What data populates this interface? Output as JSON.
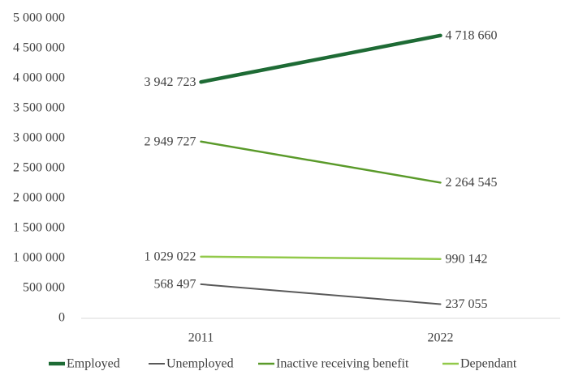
{
  "chart_data": {
    "type": "line",
    "categories": [
      "2011",
      "2022"
    ],
    "series": [
      {
        "name": "Employed",
        "color": "#1e6b35",
        "values": [
          3942723,
          4718660
        ],
        "value_labels": [
          "3 942 723",
          "4 718 660"
        ]
      },
      {
        "name": "Unemployed",
        "color": "#595959",
        "values": [
          568497,
          237055
        ],
        "value_labels": [
          "568 497",
          "237 055"
        ]
      },
      {
        "name": "Inactive receiving benefit",
        "color": "#5a9a2a",
        "values": [
          2949727,
          2264545
        ],
        "value_labels": [
          "2 949 727",
          "2 264 545"
        ]
      },
      {
        "name": "Dependant",
        "color": "#92c94a",
        "values": [
          1029022,
          990142
        ],
        "value_labels": [
          "1 029 022",
          "990 142"
        ]
      }
    ],
    "ylim": [
      0,
      5000000
    ],
    "yticks": [
      0,
      {
        "value": 500000,
        "label": "500 000"
      },
      {
        "value": 1000000,
        "label": "1 000 000"
      },
      {
        "value": 1500000,
        "label": "1 500 000"
      },
      {
        "value": 2000000,
        "label": "2 000 000"
      },
      {
        "value": 2500000,
        "label": "2 500 000"
      },
      {
        "value": 3000000,
        "label": "3 000 000"
      },
      {
        "value": 3500000,
        "label": "3 500 000"
      },
      {
        "value": 4000000,
        "label": "4 000 000"
      },
      {
        "value": 4500000,
        "label": "4 500 000"
      },
      {
        "value": 5000000,
        "label": "5 000 000"
      }
    ],
    "grid": false,
    "legend": "bottom"
  }
}
